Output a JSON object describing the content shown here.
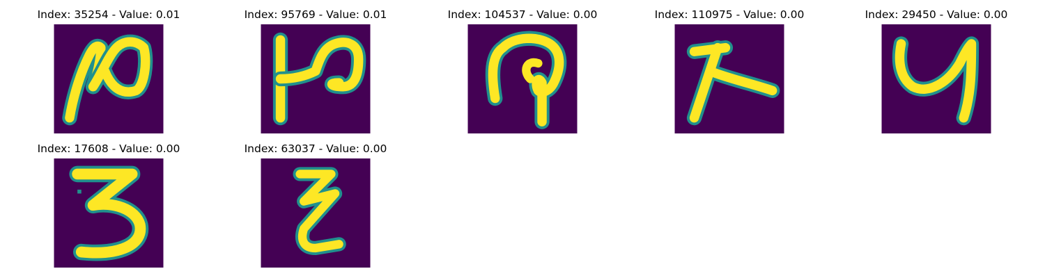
{
  "colors": {
    "background": "#440154",
    "mid": "#21908d",
    "stroke": "#fde725",
    "light": "#5ec962"
  },
  "panels": [
    {
      "title": "Index: 35254 - Value: 0.01",
      "glyph": "handwritten-stroke-glyph"
    },
    {
      "title": "Index: 95769 - Value: 0.01",
      "glyph": "handwritten-stroke-glyph"
    },
    {
      "title": "Index: 104537 - Value: 0.00",
      "glyph": "handwritten-stroke-glyph"
    },
    {
      "title": "Index: 110975 - Value: 0.00",
      "glyph": "handwritten-stroke-glyph"
    },
    {
      "title": "Index: 29450 - Value: 0.00",
      "glyph": "handwritten-stroke-glyph"
    },
    {
      "title": "Index: 17608 - Value: 0.00",
      "glyph": "handwritten-digit-3"
    },
    {
      "title": "Index: 63037 - Value: 0.00",
      "glyph": "handwritten-stroke-glyph"
    }
  ]
}
